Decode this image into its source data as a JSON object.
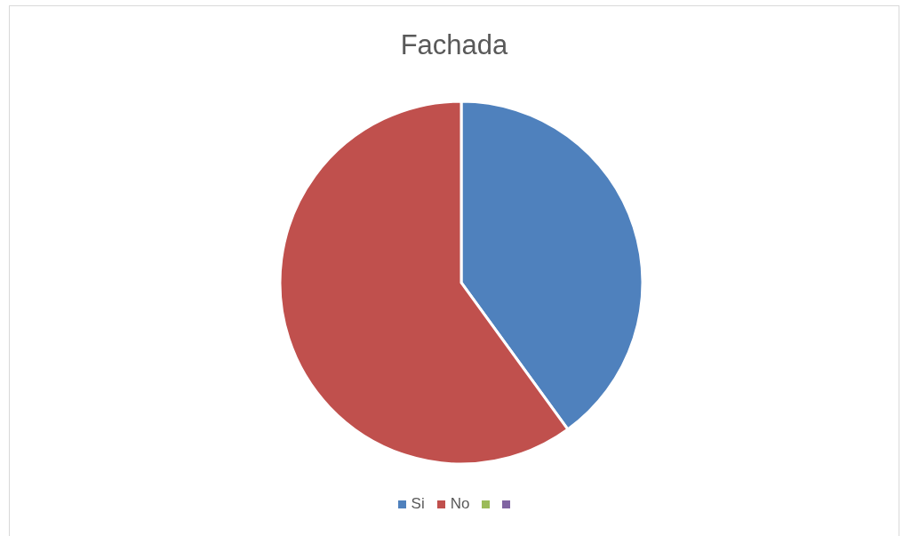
{
  "chart_data": {
    "type": "pie",
    "title": "Fachada",
    "categories": [
      "Si",
      "No",
      null,
      null
    ],
    "values": [
      40,
      60,
      0,
      0
    ],
    "colors": [
      "#4f81bd",
      "#c0504d",
      "#9bbb59",
      "#8064a2"
    ],
    "legend": "bottom"
  }
}
